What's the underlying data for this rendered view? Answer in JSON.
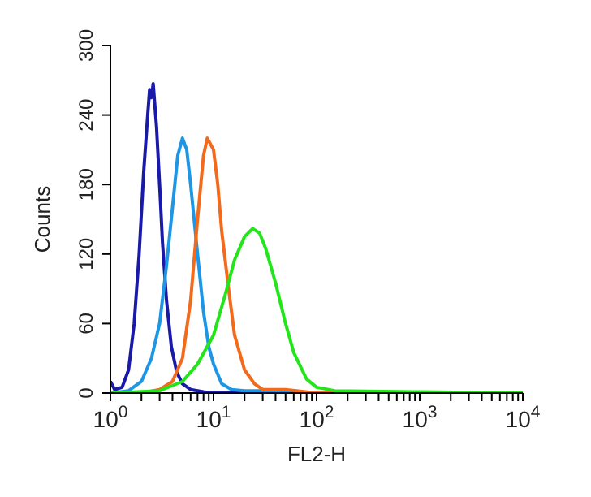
{
  "chart_data": {
    "type": "line",
    "xlabel": "FL2-H",
    "ylabel": "Counts",
    "log": "x",
    "xlim": [
      1,
      10000
    ],
    "xticks": [
      {
        "value": 1,
        "label": "10$^{0}$"
      },
      {
        "value": 2,
        "label": null
      },
      {
        "value": 3,
        "label": null
      },
      {
        "value": 4,
        "label": null
      },
      {
        "value": 5,
        "label": null
      },
      {
        "value": 6,
        "label": null
      },
      {
        "value": 7,
        "label": null
      },
      {
        "value": 8,
        "label": null
      },
      {
        "value": 9,
        "label": null
      },
      {
        "value": 10,
        "label": "10$^{1}$"
      },
      {
        "value": 20,
        "label": null
      },
      {
        "value": 30,
        "label": null
      },
      {
        "value": 40,
        "label": null
      },
      {
        "value": 50,
        "label": null
      },
      {
        "value": 60,
        "label": null
      },
      {
        "value": 70,
        "label": null
      },
      {
        "value": 80,
        "label": null
      },
      {
        "value": 90,
        "label": null
      },
      {
        "value": 100,
        "label": "10$^{2}$"
      },
      {
        "value": 200,
        "label": null
      },
      {
        "value": 300,
        "label": null
      },
      {
        "value": 400,
        "label": null
      },
      {
        "value": 500,
        "label": null
      },
      {
        "value": 600,
        "label": null
      },
      {
        "value": 700,
        "label": null
      },
      {
        "value": 800,
        "label": null
      },
      {
        "value": 900,
        "label": null
      },
      {
        "value": 1000,
        "label": "10$^{3}$"
      },
      {
        "value": 2000,
        "label": null
      },
      {
        "value": 3000,
        "label": null
      },
      {
        "value": 4000,
        "label": null
      },
      {
        "value": 5000,
        "label": null
      },
      {
        "value": 6000,
        "label": null
      },
      {
        "value": 7000,
        "label": null
      },
      {
        "value": 8000,
        "label": null
      },
      {
        "value": 9000,
        "label": null
      },
      {
        "value": 10000,
        "label": "10$^{4}$"
      }
    ],
    "ylim": [
      0,
      300
    ],
    "yticks": [
      0,
      60,
      120,
      180,
      240,
      300
    ],
    "grid": false,
    "legend": false,
    "marker": "none",
    "line_style": "solid",
    "series": [
      {
        "color": "#1a1aa8",
        "x": [
          1,
          1.1,
          1.3,
          1.5,
          1.7,
          1.9,
          2.1,
          2.3,
          2.4,
          2.5,
          2.6,
          2.8,
          3.0,
          3.2,
          3.5,
          3.9,
          4.4,
          5,
          6,
          8,
          10,
          20,
          100,
          10000
        ],
        "values": [
          10,
          3,
          5,
          20,
          60,
          120,
          190,
          240,
          262,
          255,
          267,
          230,
          180,
          130,
          80,
          40,
          18,
          8,
          3,
          1,
          0,
          0,
          0,
          0
        ]
      },
      {
        "color": "#1e96e6",
        "x": [
          1,
          1.5,
          2,
          2.5,
          3,
          3.5,
          4,
          4.5,
          5,
          5.5,
          6,
          7,
          8,
          9,
          10,
          12,
          15,
          20,
          50,
          100,
          10000
        ],
        "values": [
          0,
          2,
          10,
          30,
          60,
          110,
          160,
          205,
          220,
          210,
          180,
          120,
          70,
          40,
          25,
          8,
          3,
          2,
          2,
          0,
          0
        ]
      },
      {
        "color": "#f26a1b",
        "x": [
          1,
          2,
          3,
          4,
          5,
          6,
          7,
          8,
          8.7,
          10,
          11,
          12,
          14,
          16,
          20,
          25,
          30,
          50,
          100,
          10000
        ],
        "values": [
          0,
          0,
          3,
          10,
          30,
          80,
          150,
          205,
          220,
          210,
          180,
          140,
          90,
          50,
          20,
          8,
          3,
          3,
          0,
          0
        ]
      },
      {
        "color": "#22e61a",
        "x": [
          1,
          3,
          5,
          7,
          10,
          13,
          16,
          20,
          24,
          28,
          32,
          40,
          50,
          60,
          80,
          100,
          150,
          1000,
          10000
        ],
        "values": [
          0,
          2,
          10,
          25,
          50,
          85,
          115,
          135,
          142,
          138,
          125,
          95,
          60,
          35,
          12,
          5,
          2,
          1,
          0
        ]
      }
    ]
  }
}
